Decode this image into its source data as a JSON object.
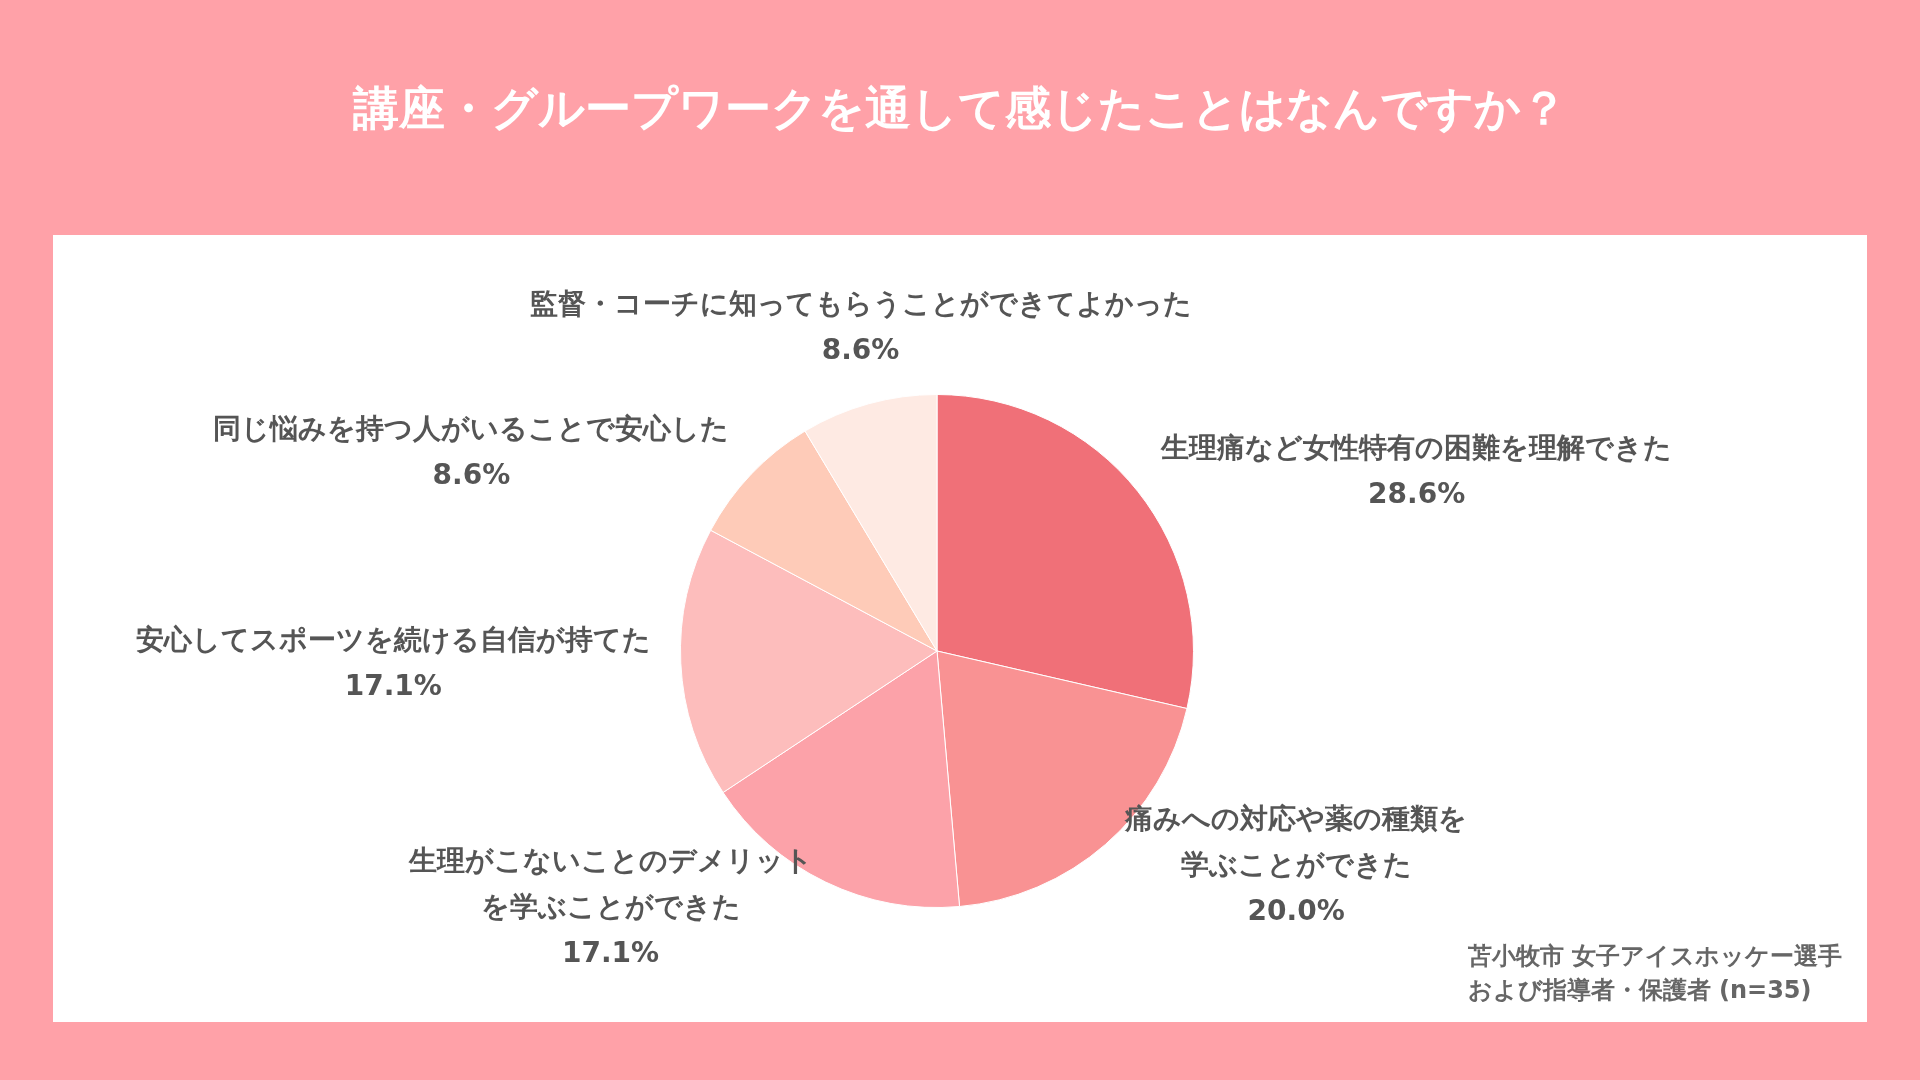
{
  "chart_data": {
    "type": "pie",
    "title": "講座・グループワークを通して感じたことはなんですか？",
    "categories": [
      "生理痛など女性特有の困難を理解できた",
      "痛みへの対応や薬の種類を学ぶことができた",
      "生理がこないことのデメリットを学ぶことができた",
      "安心してスポーツを続ける自信が持てた",
      "同じ悩みを持つ人がいることで安心した",
      "監督・コーチに知ってもらうことができてよかった"
    ],
    "values": [
      28.6,
      20.0,
      17.1,
      17.1,
      8.6,
      8.6
    ],
    "value_labels": [
      "28.6%",
      "20.0%",
      "17.1%",
      "17.1%",
      "8.6%",
      "8.6%"
    ],
    "colors": [
      "#f07078",
      "#f99293",
      "#fca2a9",
      "#fdbdbc",
      "#fecbb8",
      "#feeae3"
    ],
    "annotations": [
      "苫小牧市 女子アイスホッケー選手",
      "および指導者・保護者 (n=35)"
    ],
    "legend": false
  }
}
